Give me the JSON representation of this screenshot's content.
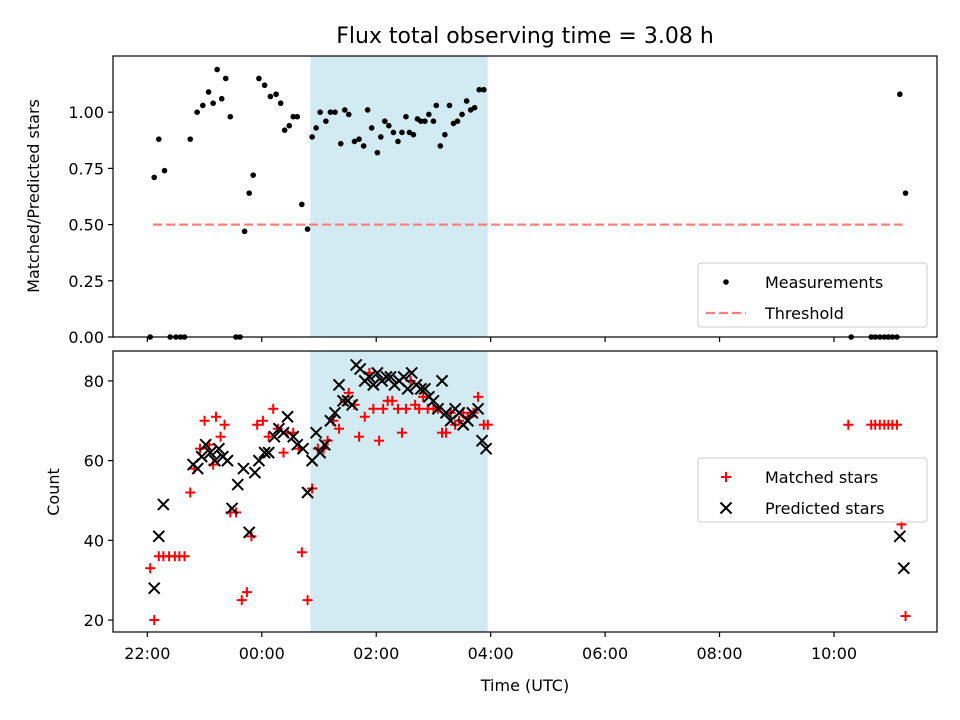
{
  "title": "Flux total observing time = 3.08 h",
  "xlabel": "Time (UTC)",
  "x_ticks": [
    "22:00",
    "00:00",
    "02:00",
    "04:00",
    "06:00",
    "08:00",
    "10:00"
  ],
  "colors": {
    "measure": "#000000",
    "threshold": "#ff7f7f",
    "matched": "#ff0000",
    "predicted": "#000000",
    "shade": "#add8e6"
  },
  "chart_data": [
    {
      "type": "scatter",
      "ylabel": "Matched/Predicted stars",
      "ylim": [
        0,
        1.25
      ],
      "xlim_hours": [
        -2.6,
        11.8
      ],
      "y_ticks": [
        "0.00",
        "0.25",
        "0.50",
        "0.75",
        "1.00"
      ],
      "shaded_span_hours": [
        0.85,
        3.95
      ],
      "legend": {
        "position": "lower right",
        "entries": [
          "Measurements",
          "Threshold"
        ]
      },
      "threshold": {
        "name": "Threshold",
        "y": 0.5,
        "x_range_hours": [
          -1.9,
          11.2
        ],
        "style": "dashed"
      },
      "series": [
        {
          "name": "Measurements",
          "marker": "dot",
          "points": [
            [
              -1.95,
              0.0
            ],
            [
              -1.88,
              0.71
            ],
            [
              -1.8,
              0.88
            ],
            [
              -1.7,
              0.74
            ],
            [
              -1.6,
              0.0
            ],
            [
              -1.5,
              0.0
            ],
            [
              -1.42,
              0.0
            ],
            [
              -1.35,
              0.0
            ],
            [
              -1.25,
              0.88
            ],
            [
              -1.13,
              1.0
            ],
            [
              -1.03,
              1.03
            ],
            [
              -0.93,
              1.09
            ],
            [
              -0.85,
              1.04
            ],
            [
              -0.78,
              1.19
            ],
            [
              -0.7,
              1.06
            ],
            [
              -0.63,
              1.15
            ],
            [
              -0.55,
              0.98
            ],
            [
              -0.45,
              0.0
            ],
            [
              -0.38,
              0.0
            ],
            [
              -0.3,
              0.47
            ],
            [
              -0.22,
              0.64
            ],
            [
              -0.15,
              0.72
            ],
            [
              -0.05,
              1.15
            ],
            [
              0.05,
              1.12
            ],
            [
              0.15,
              1.07
            ],
            [
              0.25,
              1.08
            ],
            [
              0.33,
              1.04
            ],
            [
              0.4,
              0.92
            ],
            [
              0.48,
              0.94
            ],
            [
              0.55,
              0.98
            ],
            [
              0.62,
              0.98
            ],
            [
              0.7,
              0.59
            ],
            [
              0.8,
              0.48
            ],
            [
              0.88,
              0.89
            ],
            [
              0.95,
              0.93
            ],
            [
              1.02,
              1.0
            ],
            [
              1.12,
              0.96
            ],
            [
              1.2,
              1.0
            ],
            [
              1.28,
              1.0
            ],
            [
              1.38,
              0.86
            ],
            [
              1.45,
              1.01
            ],
            [
              1.52,
              0.99
            ],
            [
              1.62,
              0.87
            ],
            [
              1.7,
              0.88
            ],
            [
              1.78,
              0.85
            ],
            [
              1.85,
              1.01
            ],
            [
              1.92,
              0.93
            ],
            [
              2.02,
              0.82
            ],
            [
              2.08,
              0.89
            ],
            [
              2.15,
              0.96
            ],
            [
              2.22,
              0.94
            ],
            [
              2.3,
              0.91
            ],
            [
              2.38,
              0.87
            ],
            [
              2.45,
              0.91
            ],
            [
              2.52,
              0.98
            ],
            [
              2.58,
              0.91
            ],
            [
              2.65,
              0.9
            ],
            [
              2.72,
              0.97
            ],
            [
              2.78,
              0.96
            ],
            [
              2.85,
              0.96
            ],
            [
              2.92,
              0.99
            ],
            [
              3.0,
              0.96
            ],
            [
              3.05,
              1.03
            ],
            [
              3.12,
              0.85
            ],
            [
              3.2,
              0.9
            ],
            [
              3.28,
              1.03
            ],
            [
              3.35,
              0.95
            ],
            [
              3.42,
              0.96
            ],
            [
              3.5,
              0.99
            ],
            [
              3.58,
              1.05
            ],
            [
              3.65,
              1.01
            ],
            [
              3.72,
              1.02
            ],
            [
              3.8,
              1.1
            ],
            [
              3.88,
              1.1
            ],
            [
              10.3,
              0.0
            ],
            [
              10.65,
              0.0
            ],
            [
              10.72,
              0.0
            ],
            [
              10.8,
              0.0
            ],
            [
              10.88,
              0.0
            ],
            [
              10.95,
              0.0
            ],
            [
              11.02,
              0.0
            ],
            [
              11.1,
              0.0
            ],
            [
              11.15,
              1.08
            ],
            [
              11.25,
              0.64
            ]
          ]
        }
      ]
    },
    {
      "type": "scatter",
      "ylabel": "Count",
      "ylim": [
        17,
        87.5
      ],
      "xlim_hours": [
        -2.6,
        11.8
      ],
      "y_ticks": [
        "20",
        "40",
        "60",
        "80"
      ],
      "shaded_span_hours": [
        0.85,
        3.95
      ],
      "legend": {
        "position": "center right",
        "entries": [
          "Matched stars",
          "Predicted stars"
        ]
      },
      "series": [
        {
          "name": "Matched stars",
          "marker": "plus",
          "points": [
            [
              -1.95,
              33
            ],
            [
              -1.88,
              20
            ],
            [
              -1.8,
              36
            ],
            [
              -1.72,
              36
            ],
            [
              -1.62,
              36
            ],
            [
              -1.52,
              36
            ],
            [
              -1.44,
              36
            ],
            [
              -1.35,
              36
            ],
            [
              -1.25,
              52
            ],
            [
              -1.18,
              58
            ],
            [
              -1.08,
              63
            ],
            [
              -1.0,
              70
            ],
            [
              -0.92,
              64
            ],
            [
              -0.85,
              59
            ],
            [
              -0.8,
              71
            ],
            [
              -0.72,
              66
            ],
            [
              -0.65,
              69
            ],
            [
              -0.55,
              47
            ],
            [
              -0.45,
              47
            ],
            [
              -0.35,
              25
            ],
            [
              -0.26,
              27
            ],
            [
              -0.18,
              41
            ],
            [
              -0.08,
              69
            ],
            [
              0.02,
              70
            ],
            [
              0.12,
              66
            ],
            [
              0.2,
              73
            ],
            [
              0.28,
              68
            ],
            [
              0.38,
              62
            ],
            [
              0.45,
              67
            ],
            [
              0.55,
              67
            ],
            [
              0.65,
              63
            ],
            [
              0.7,
              37
            ],
            [
              0.8,
              25
            ],
            [
              0.88,
              53
            ],
            [
              0.98,
              63
            ],
            [
              1.08,
              63
            ],
            [
              1.15,
              65
            ],
            [
              1.25,
              70
            ],
            [
              1.35,
              68
            ],
            [
              1.45,
              75
            ],
            [
              1.52,
              77
            ],
            [
              1.62,
              74
            ],
            [
              1.7,
              66
            ],
            [
              1.8,
              71
            ],
            [
              1.88,
              82
            ],
            [
              1.95,
              73
            ],
            [
              2.05,
              65
            ],
            [
              2.12,
              73
            ],
            [
              2.2,
              75
            ],
            [
              2.28,
              75
            ],
            [
              2.38,
              73
            ],
            [
              2.45,
              67
            ],
            [
              2.52,
              73
            ],
            [
              2.6,
              80
            ],
            [
              2.68,
              74
            ],
            [
              2.75,
              73
            ],
            [
              2.82,
              76
            ],
            [
              2.9,
              73
            ],
            [
              3.0,
              73
            ],
            [
              3.08,
              73
            ],
            [
              3.15,
              67
            ],
            [
              3.22,
              67
            ],
            [
              3.3,
              72
            ],
            [
              3.38,
              69
            ],
            [
              3.45,
              70
            ],
            [
              3.52,
              72
            ],
            [
              3.6,
              71
            ],
            [
              3.7,
              72
            ],
            [
              3.78,
              76
            ],
            [
              3.88,
              69
            ],
            [
              3.95,
              69
            ],
            [
              10.25,
              69
            ],
            [
              10.65,
              69
            ],
            [
              10.72,
              69
            ],
            [
              10.8,
              69
            ],
            [
              10.88,
              69
            ],
            [
              10.95,
              69
            ],
            [
              11.02,
              69
            ],
            [
              11.1,
              69
            ],
            [
              11.18,
              44
            ],
            [
              11.25,
              21
            ]
          ]
        },
        {
          "name": "Predicted stars",
          "marker": "x",
          "points": [
            [
              -1.88,
              28
            ],
            [
              -1.8,
              41
            ],
            [
              -1.72,
              49
            ],
            [
              -1.2,
              59
            ],
            [
              -1.12,
              58
            ],
            [
              -1.05,
              61
            ],
            [
              -0.98,
              64
            ],
            [
              -0.9,
              62
            ],
            [
              -0.82,
              60
            ],
            [
              -0.75,
              63
            ],
            [
              -0.68,
              61
            ],
            [
              -0.6,
              60
            ],
            [
              -0.52,
              48
            ],
            [
              -0.42,
              54
            ],
            [
              -0.32,
              58
            ],
            [
              -0.22,
              42
            ],
            [
              -0.12,
              57
            ],
            [
              -0.05,
              60
            ],
            [
              0.05,
              62
            ],
            [
              0.12,
              62
            ],
            [
              0.22,
              66
            ],
            [
              0.3,
              68
            ],
            [
              0.38,
              67
            ],
            [
              0.45,
              71
            ],
            [
              0.55,
              66
            ],
            [
              0.62,
              64
            ],
            [
              0.72,
              63
            ],
            [
              0.8,
              52
            ],
            [
              0.88,
              60
            ],
            [
              0.95,
              67
            ],
            [
              1.02,
              62
            ],
            [
              1.1,
              64
            ],
            [
              1.2,
              70
            ],
            [
              1.28,
              72
            ],
            [
              1.35,
              79
            ],
            [
              1.42,
              75
            ],
            [
              1.5,
              75
            ],
            [
              1.58,
              74
            ],
            [
              1.65,
              84
            ],
            [
              1.72,
              83
            ],
            [
              1.8,
              80
            ],
            [
              1.88,
              81
            ],
            [
              1.95,
              79
            ],
            [
              2.02,
              82
            ],
            [
              2.1,
              80
            ],
            [
              2.18,
              81
            ],
            [
              2.25,
              81
            ],
            [
              2.32,
              79
            ],
            [
              2.4,
              80
            ],
            [
              2.48,
              81
            ],
            [
              2.55,
              78
            ],
            [
              2.62,
              82
            ],
            [
              2.7,
              79
            ],
            [
              2.78,
              78
            ],
            [
              2.85,
              78
            ],
            [
              2.92,
              76
            ],
            [
              3.0,
              75
            ],
            [
              3.08,
              73
            ],
            [
              3.15,
              80
            ],
            [
              3.22,
              72
            ],
            [
              3.3,
              70
            ],
            [
              3.38,
              73
            ],
            [
              3.45,
              72
            ],
            [
              3.52,
              69
            ],
            [
              3.6,
              70
            ],
            [
              3.68,
              72
            ],
            [
              3.78,
              73
            ],
            [
              3.85,
              65
            ],
            [
              3.92,
              63
            ],
            [
              11.15,
              41
            ],
            [
              11.22,
              33
            ]
          ]
        }
      ]
    }
  ]
}
